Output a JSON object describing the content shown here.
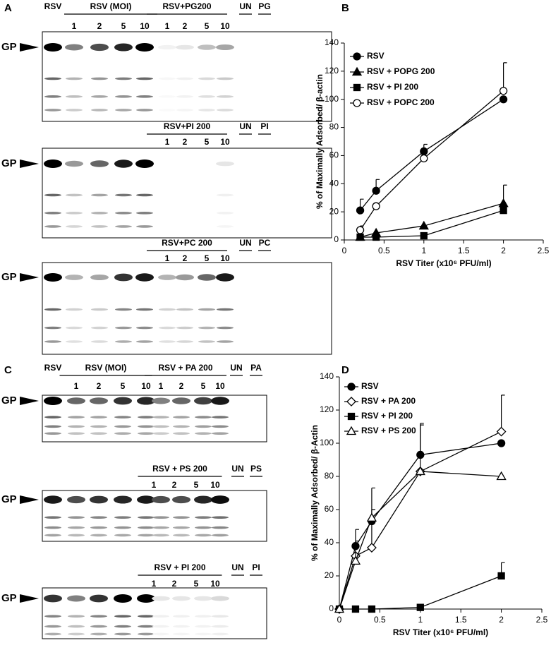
{
  "panel_labels": [
    "A",
    "B",
    "C",
    "D"
  ],
  "blots": [
    {
      "marker": "GP",
      "groups": [
        {
          "label": "RSV"
        },
        {
          "label": "RSV (MOI)",
          "lanes": [
            "1",
            "2",
            "5",
            "10"
          ]
        },
        {
          "label": "RSV+PG200",
          "lanes": [
            "1",
            "2",
            "5",
            "10"
          ]
        },
        {
          "label": "UN"
        },
        {
          "label": "PG"
        }
      ]
    },
    {
      "marker": "GP",
      "groups": [
        {
          "label": "RSV+PI 200",
          "lanes": [
            "1",
            "2",
            "5",
            "10"
          ]
        },
        {
          "label": "UN"
        },
        {
          "label": "PI"
        }
      ]
    },
    {
      "marker": "GP",
      "groups": [
        {
          "label": "RSV+PC 200",
          "lanes": [
            "1",
            "2",
            "5",
            "10"
          ]
        },
        {
          "label": "UN"
        },
        {
          "label": "PC"
        }
      ]
    },
    {
      "marker": "GP",
      "groups": [
        {
          "label": "RSV"
        },
        {
          "label": "RSV (MOI)",
          "lanes": [
            "1",
            "2",
            "5",
            "10"
          ]
        },
        {
          "label": "RSV + PA 200",
          "lanes": [
            "1",
            "2",
            "5",
            "10"
          ]
        },
        {
          "label": "UN"
        },
        {
          "label": "PA"
        }
      ]
    },
    {
      "marker": "GP",
      "groups": [
        {
          "label": "RSV + PS 200",
          "lanes": [
            "1",
            "2",
            "5",
            "10"
          ]
        },
        {
          "label": "UN"
        },
        {
          "label": "PS"
        }
      ]
    },
    {
      "marker": "GP",
      "groups": [
        {
          "label": "RSV + PI 200",
          "lanes": [
            "1",
            "2",
            "5",
            "10"
          ]
        },
        {
          "label": "UN"
        },
        {
          "label": "PI"
        }
      ]
    }
  ],
  "chart_data": [
    {
      "type": "line",
      "x_label": "RSV Titer (x10⁶ PFU/ml)",
      "y_label": "% of Maximally Adsorbed/ β-actin",
      "xlim": [
        0,
        2.5
      ],
      "xticks": [
        0,
        0.5,
        1,
        1.5,
        2,
        2.5
      ],
      "ylim": [
        0,
        140
      ],
      "yticks": [
        0,
        20,
        40,
        60,
        80,
        100,
        120,
        140
      ],
      "x": [
        0.2,
        0.4,
        1,
        2
      ],
      "series": [
        {
          "name": "RSV",
          "marker": "circle-filled",
          "color": "#000000",
          "values": [
            21,
            35,
            63,
            100
          ],
          "errors": [
            8,
            8,
            5,
            null
          ]
        },
        {
          "name": "RSV + POPG 200",
          "marker": "triangle-filled",
          "color": "#000000",
          "values": [
            2,
            5,
            10,
            26
          ],
          "errors": [
            null,
            null,
            null,
            13
          ]
        },
        {
          "name": "RSV + PI 200",
          "marker": "square-filled",
          "color": "#000000",
          "values": [
            2,
            2,
            3,
            21
          ],
          "errors": [
            null,
            null,
            null,
            null
          ]
        },
        {
          "name": "RSV + POPC 200",
          "marker": "circle-open",
          "color": "#000000",
          "values": [
            7,
            24,
            58,
            106
          ],
          "errors": [
            3,
            null,
            5,
            20
          ]
        }
      ]
    },
    {
      "type": "line",
      "x_label": "RSV Titer (x10⁶ PFU/ml)",
      "y_label": "% of Maximally Adsorbed/ β-Actin",
      "xlim": [
        0,
        2.5
      ],
      "xticks": [
        0,
        0.5,
        1,
        1.5,
        2,
        2.5
      ],
      "ylim": [
        0,
        140
      ],
      "yticks": [
        0,
        20,
        40,
        60,
        80,
        100,
        120,
        140
      ],
      "x": [
        0,
        0.2,
        0.4,
        1,
        2
      ],
      "series": [
        {
          "name": "RSV",
          "marker": "circle-filled",
          "color": "#000000",
          "values": [
            0,
            38,
            53,
            93,
            100
          ],
          "errors": [
            null,
            10,
            7,
            19,
            null
          ]
        },
        {
          "name": "RSV + PA 200",
          "marker": "diamond-open",
          "color": "#000000",
          "values": [
            0,
            32,
            37,
            83,
            107
          ],
          "errors": [
            null,
            null,
            36,
            null,
            22
          ]
        },
        {
          "name": "RSV + PI 200",
          "marker": "square-filled",
          "color": "#000000",
          "values": [
            0,
            0,
            0,
            1,
            20
          ],
          "errors": [
            null,
            null,
            null,
            null,
            8
          ]
        },
        {
          "name": "RSV + PS 200",
          "marker": "triangle-open",
          "color": "#000000",
          "values": [
            0,
            29,
            55,
            83,
            80
          ],
          "errors": [
            null,
            12,
            null,
            28,
            null
          ]
        }
      ]
    }
  ]
}
